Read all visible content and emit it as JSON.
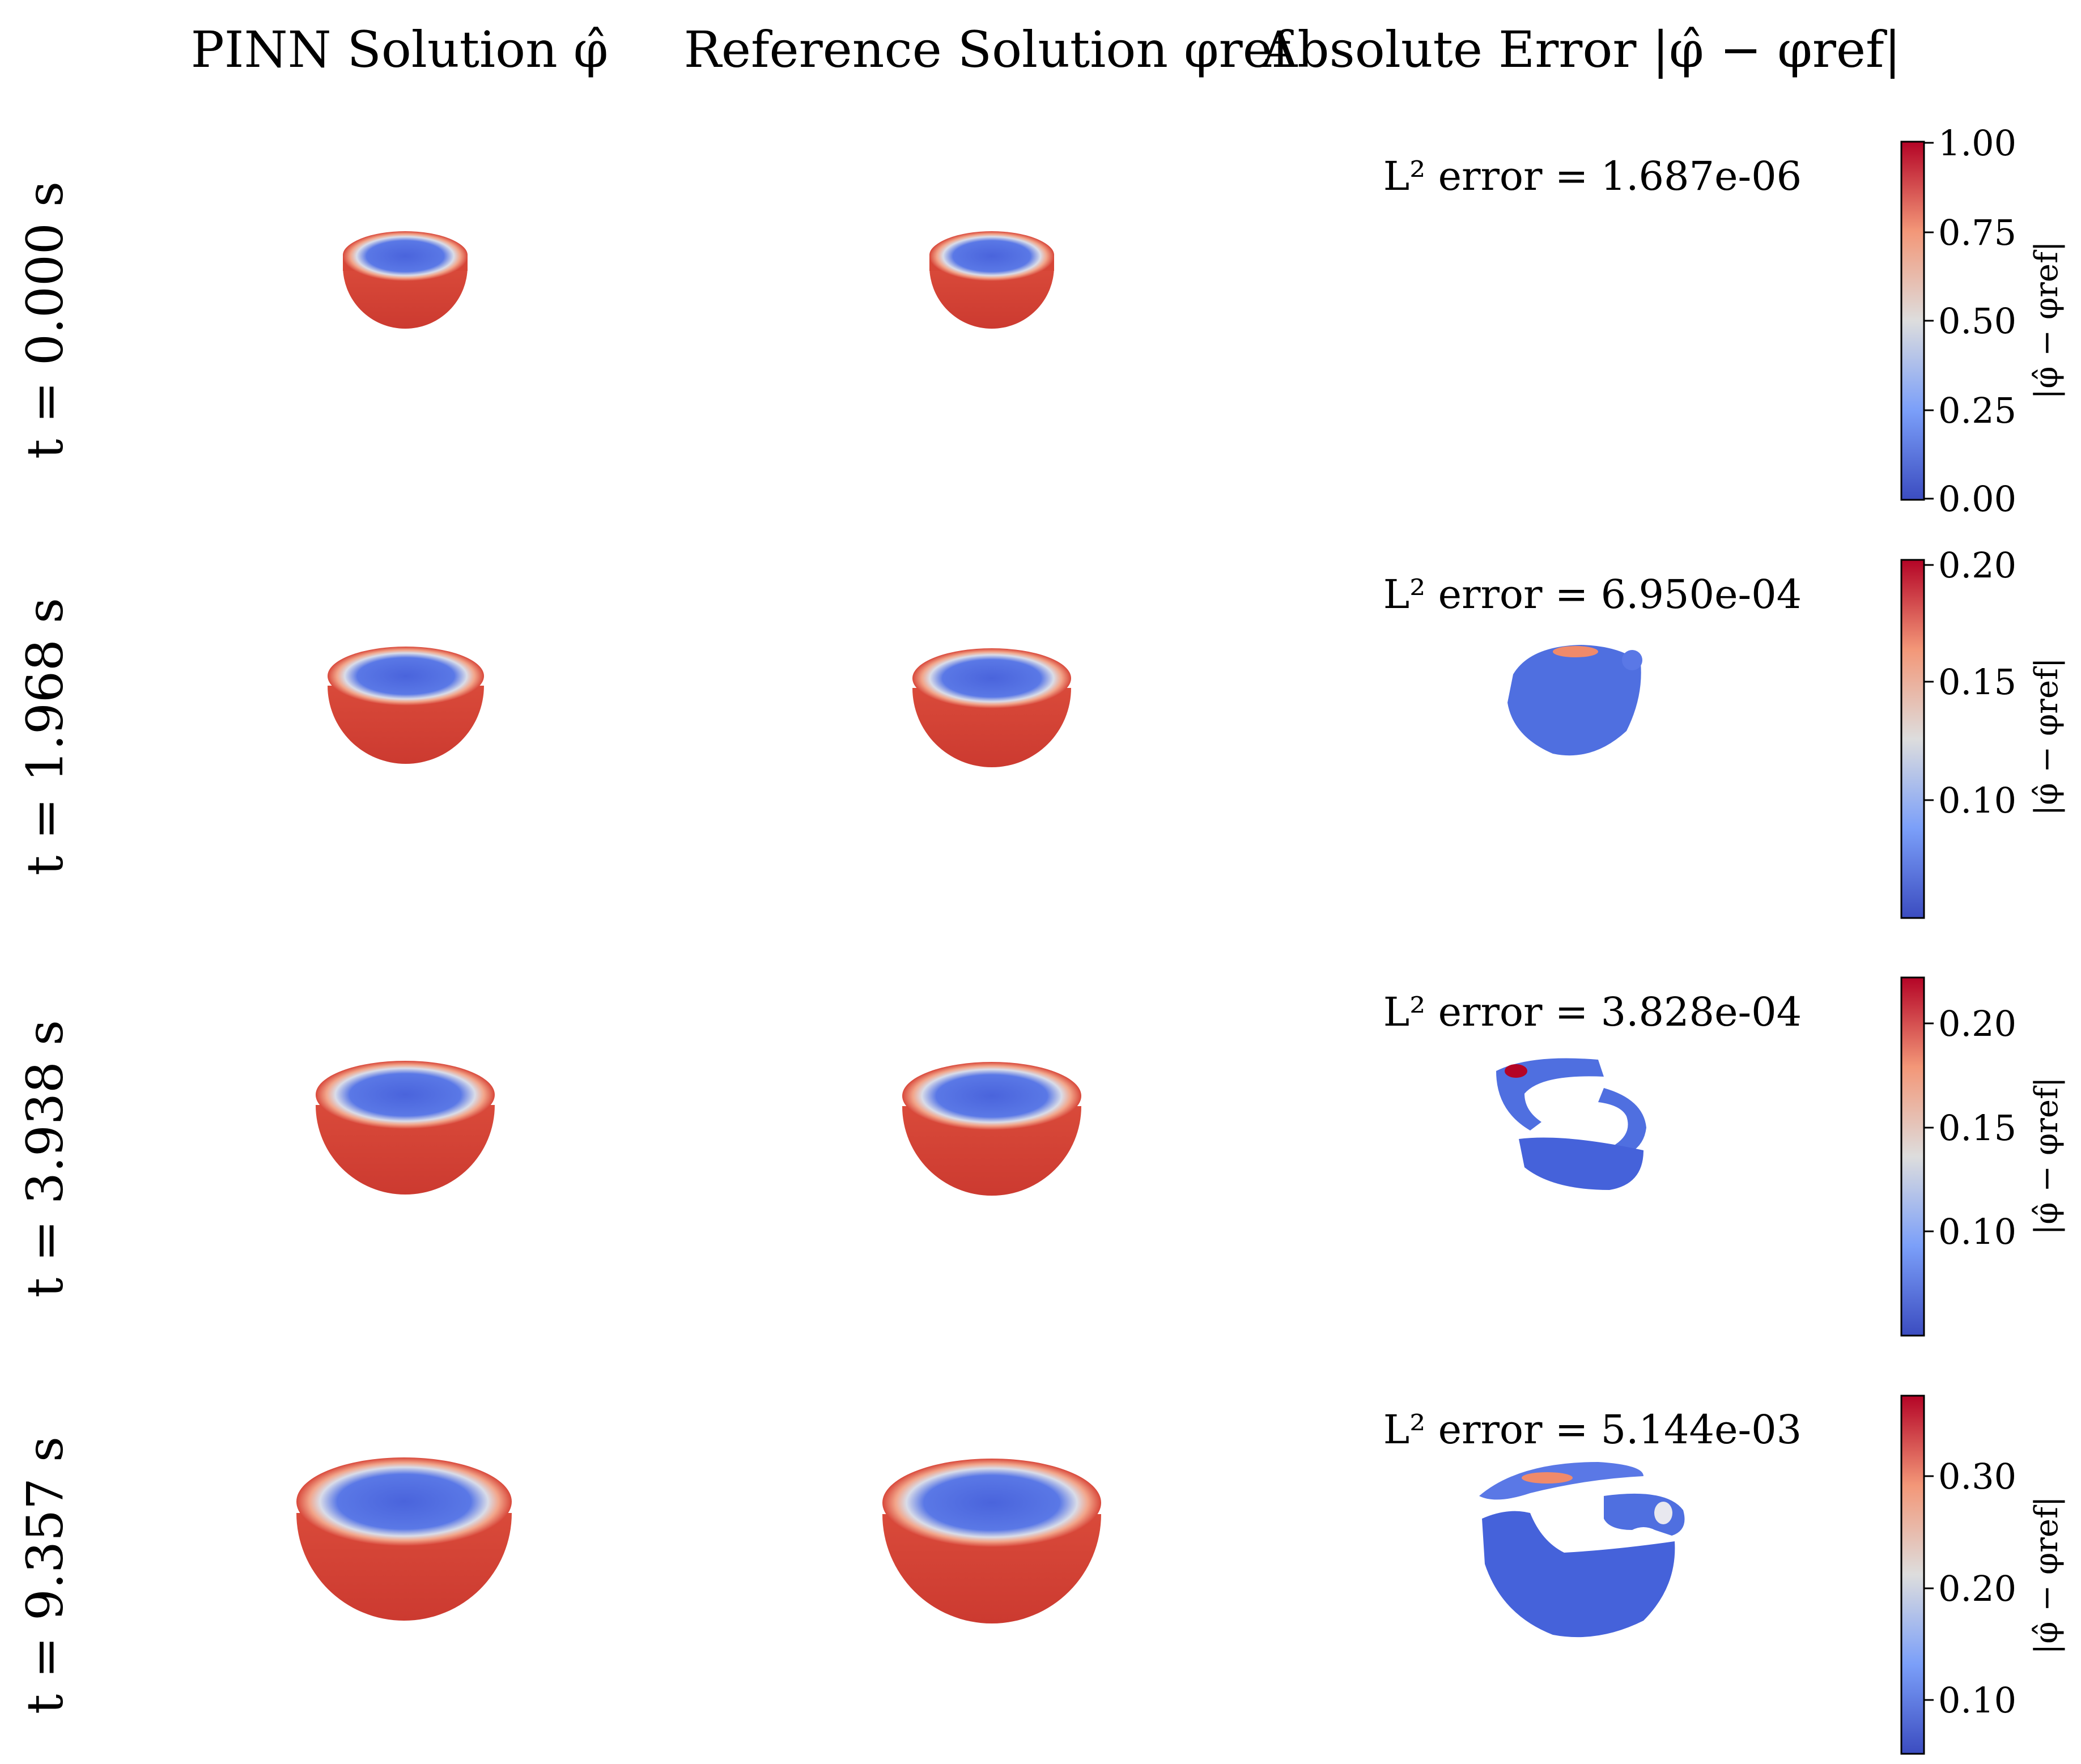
{
  "columns": [
    {
      "label": "PINN Solution φ̂"
    },
    {
      "label": "Reference Solution φref"
    },
    {
      "label": "Absolute Error |φ̂ − φref|"
    }
  ],
  "rows": [
    {
      "time_label": "t = 0.000 s",
      "l2_text": "L² error = 1.687e-06",
      "colorbar_label": "|φ̂ − φref|",
      "ticks": [
        "1.00",
        "0.75",
        "0.50",
        "0.25",
        "0.00"
      ],
      "error_blob": "none"
    },
    {
      "time_label": "t = 1.968 s",
      "l2_text": "L² error = 6.950e-04",
      "colorbar_label": "|φ̂ − φref|",
      "ticks": [
        "0.20",
        "0.15",
        "0.10"
      ],
      "error_blob": "small"
    },
    {
      "time_label": "t = 3.938 s",
      "l2_text": "L² error = 3.828e-04",
      "colorbar_label": "|φ̂ − φref|",
      "ticks": [
        "0.20",
        "0.15",
        "0.10"
      ],
      "error_blob": "split"
    },
    {
      "time_label": "t = 9.357 s",
      "l2_text": "L² error = 5.144e-03",
      "colorbar_label": "|φ̂ − φref|",
      "ticks": [
        "0.30",
        "0.20",
        "0.10"
      ],
      "error_blob": "large"
    }
  ],
  "colormap": {
    "name": "coolwarm",
    "low": "#3b4cc0",
    "mid": "#dddddd",
    "high": "#b40426"
  }
}
